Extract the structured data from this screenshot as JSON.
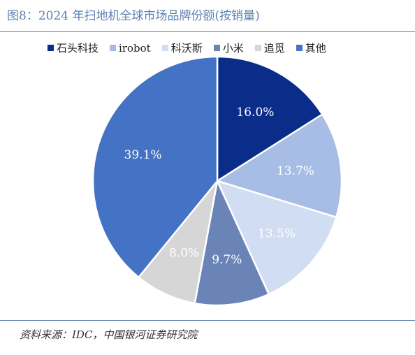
{
  "title": "图8：2024 年扫地机全球市场品牌份额(按销量)",
  "source": "资料来源：IDC，中国银河证券研究院",
  "chart_data": {
    "type": "pie",
    "title": "图8：2024 年扫地机全球市场品牌份额(按销量)",
    "legend_position": "top",
    "slices": [
      {
        "name": "石头科技",
        "value": 16.0,
        "label": "16.0%",
        "color": "#0b2d8a"
      },
      {
        "name": "irobot",
        "value": 13.7,
        "label": "13.7%",
        "color": "#a7bde5"
      },
      {
        "name": "科沃斯",
        "value": 13.5,
        "label": "13.5%",
        "color": "#d0ddf2"
      },
      {
        "name": "小米",
        "value": 9.7,
        "label": "9.7%",
        "color": "#6b84b8"
      },
      {
        "name": "追觅",
        "value": 8.0,
        "label": "8.0%",
        "color": "#d6d6d6"
      },
      {
        "name": "其他",
        "value": 39.1,
        "label": "39.1%",
        "color": "#4472c4"
      }
    ]
  }
}
